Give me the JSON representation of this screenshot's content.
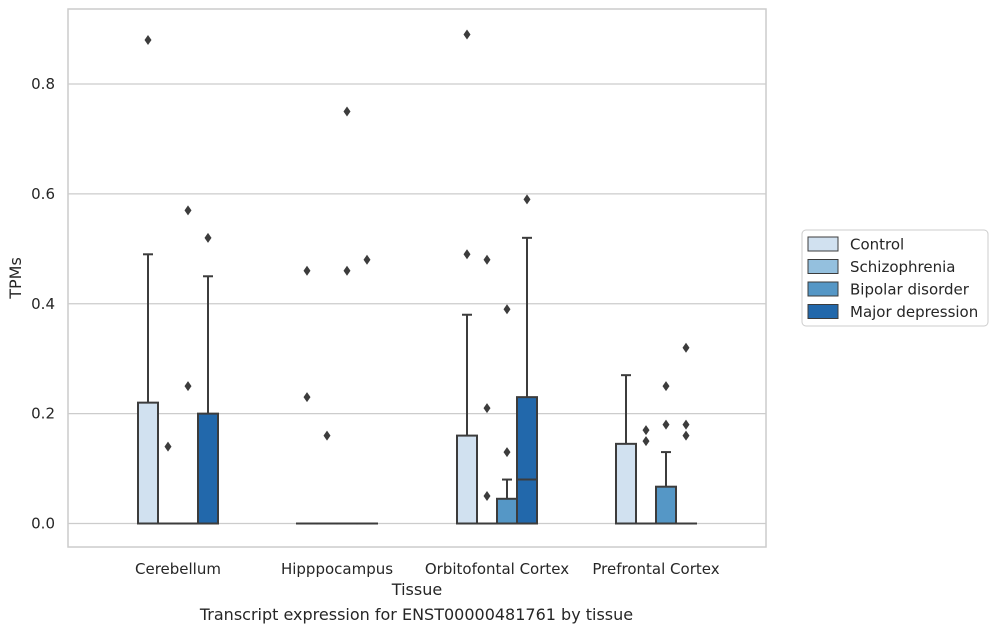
{
  "caption": "Transcript expression for ENST00000481761 by tissue",
  "chart_data": {
    "type": "box",
    "xlabel": "Tissue",
    "ylabel": "TPMs",
    "ylim": [
      -0.043,
      0.935
    ],
    "yticks": [
      0.0,
      0.2,
      0.4,
      0.6,
      0.8
    ],
    "ytick_labels": [
      "0.0",
      "0.2",
      "0.4",
      "0.6",
      "0.8"
    ],
    "grid": true,
    "legend_position": "right",
    "categories": [
      "Cerebellum",
      "Hipppocampus",
      "Orbitofontal Cortex",
      "Prefrontal Cortex"
    ],
    "series": [
      {
        "name": "Control",
        "color": "#d1e1f0",
        "boxes": [
          {
            "q1": 0.0,
            "median": 0.0,
            "q3": 0.22,
            "whisker_low": 0.0,
            "whisker_high": 0.49,
            "outliers": [
              0.88
            ]
          },
          {
            "q1": 0.0,
            "median": 0.0,
            "q3": 0.0,
            "whisker_low": 0.0,
            "whisker_high": 0.0,
            "outliers": [
              0.46,
              0.23
            ]
          },
          {
            "q1": 0.0,
            "median": 0.0,
            "q3": 0.16,
            "whisker_low": 0.0,
            "whisker_high": 0.38,
            "outliers": [
              0.89,
              0.49
            ]
          },
          {
            "q1": 0.0,
            "median": 0.0,
            "q3": 0.145,
            "whisker_low": 0.0,
            "whisker_high": 0.27,
            "outliers": []
          }
        ]
      },
      {
        "name": "Schizophrenia",
        "color": "#94c0de",
        "boxes": [
          {
            "q1": 0.0,
            "median": 0.0,
            "q3": 0.0,
            "whisker_low": 0.0,
            "whisker_high": 0.0,
            "outliers": [
              0.14
            ]
          },
          {
            "q1": 0.0,
            "median": 0.0,
            "q3": 0.0,
            "whisker_low": 0.0,
            "whisker_high": 0.0,
            "outliers": [
              0.16
            ]
          },
          {
            "q1": 0.0,
            "median": 0.0,
            "q3": 0.0,
            "whisker_low": 0.0,
            "whisker_high": 0.0,
            "outliers": [
              0.48,
              0.21,
              0.05
            ]
          },
          {
            "q1": 0.0,
            "median": 0.0,
            "q3": 0.0,
            "whisker_low": 0.0,
            "whisker_high": 0.0,
            "outliers": [
              0.17,
              0.15
            ]
          }
        ]
      },
      {
        "name": "Bipolar disorder",
        "color": "#5597c6",
        "boxes": [
          {
            "q1": 0.0,
            "median": 0.0,
            "q3": 0.0,
            "whisker_low": 0.0,
            "whisker_high": 0.0,
            "outliers": [
              0.57,
              0.25
            ]
          },
          {
            "q1": 0.0,
            "median": 0.0,
            "q3": 0.0,
            "whisker_low": 0.0,
            "whisker_high": 0.0,
            "outliers": [
              0.75,
              0.46
            ]
          },
          {
            "q1": 0.0,
            "median": 0.0,
            "q3": 0.045,
            "whisker_low": 0.0,
            "whisker_high": 0.08,
            "outliers": [
              0.39,
              0.13
            ]
          },
          {
            "q1": 0.0,
            "median": 0.0,
            "q3": 0.067,
            "whisker_low": 0.0,
            "whisker_high": 0.13,
            "outliers": [
              0.25,
              0.18
            ]
          }
        ]
      },
      {
        "name": "Major depression",
        "color": "#2268ab",
        "boxes": [
          {
            "q1": 0.0,
            "median": 0.0,
            "q3": 0.2,
            "whisker_low": 0.0,
            "whisker_high": 0.45,
            "outliers": [
              0.52
            ]
          },
          {
            "q1": 0.0,
            "median": 0.0,
            "q3": 0.0,
            "whisker_low": 0.0,
            "whisker_high": 0.0,
            "outliers": [
              0.48
            ]
          },
          {
            "q1": 0.0,
            "median": 0.08,
            "q3": 0.23,
            "whisker_low": 0.0,
            "whisker_high": 0.52,
            "outliers": [
              0.59
            ]
          },
          {
            "q1": 0.0,
            "median": 0.0,
            "q3": 0.0,
            "whisker_low": 0.0,
            "whisker_high": 0.0,
            "outliers": [
              0.32,
              0.18,
              0.16
            ]
          }
        ]
      }
    ]
  }
}
